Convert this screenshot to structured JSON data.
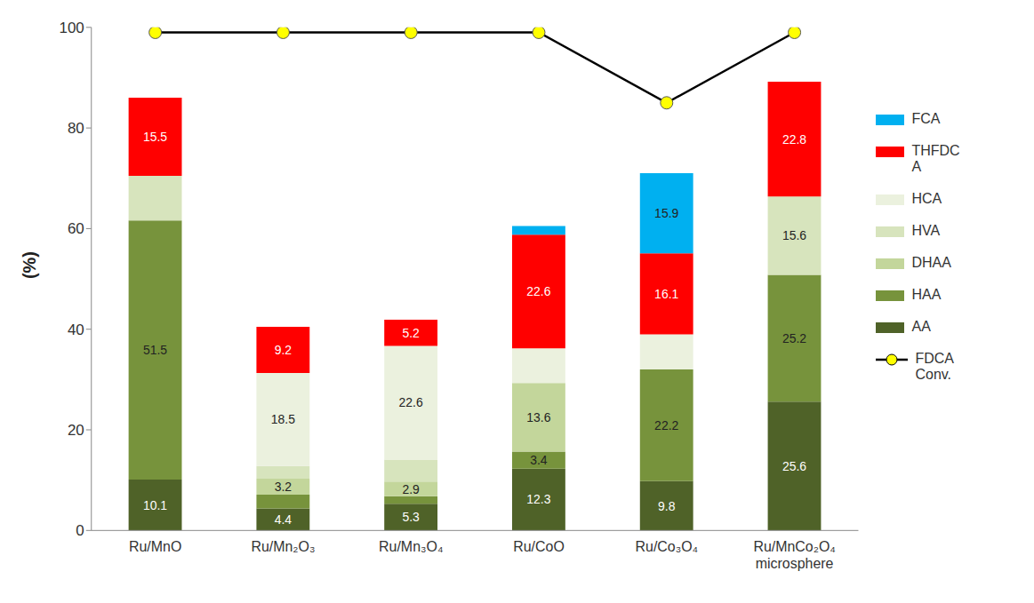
{
  "chart_data": {
    "type": "bar",
    "stacked": true,
    "categories": [
      "Ru/MnO",
      "Ru/Mn₂O₃",
      "Ru/Mn₃O₄",
      "Ru/CoO",
      "Ru/Co₃O₄",
      "Ru/MnCo₂O₄ microsphere"
    ],
    "ylabel": "(%)",
    "ylim": [
      0,
      100
    ],
    "yticks": [
      0,
      20,
      40,
      60,
      80,
      100
    ],
    "grid": false,
    "legend": "right",
    "data_labels": true,
    "series": [
      {
        "name": "AA",
        "color": "#4f6228",
        "values": [
          10.1,
          4.4,
          5.3,
          12.3,
          9.8,
          25.6
        ],
        "value_labels": [
          "10.1",
          "4.4",
          "5.3",
          "12.3",
          "9.8",
          "25.6"
        ]
      },
      {
        "name": "HAA",
        "color": "#77933c",
        "values": [
          51.5,
          2.7,
          1.5,
          3.4,
          22.2,
          25.2
        ],
        "value_labels": [
          "51.5",
          null,
          null,
          "3.4",
          "22.2",
          "25.2"
        ]
      },
      {
        "name": "DHAA",
        "color": "#c3d69b",
        "values": [
          0,
          3.2,
          2.9,
          13.6,
          0,
          0
        ],
        "value_labels": [
          null,
          "3.2",
          "2.9",
          "13.6",
          null,
          null
        ]
      },
      {
        "name": "HVA",
        "color": "#d7e4bd",
        "values": [
          8.9,
          2.5,
          4.4,
          0,
          0,
          15.6
        ],
        "value_labels": [
          null,
          null,
          null,
          null,
          null,
          "15.6"
        ]
      },
      {
        "name": "HCA",
        "color": "#ebf1de",
        "values": [
          0,
          18.5,
          22.6,
          6.9,
          7.0,
          0
        ],
        "value_labels": [
          null,
          "18.5",
          "22.6",
          null,
          null,
          null
        ]
      },
      {
        "name": "THFDCA",
        "color": "#ff0000",
        "values": [
          15.5,
          9.2,
          5.2,
          22.6,
          16.1,
          22.8
        ],
        "value_labels": [
          "15.5",
          "9.2",
          "5.2",
          "22.6",
          "16.1",
          "22.8"
        ]
      },
      {
        "name": "FCA",
        "color": "#00b0f0",
        "values": [
          0,
          0,
          0,
          1.7,
          15.9,
          0
        ],
        "value_labels": [
          null,
          null,
          null,
          null,
          "15.9",
          null
        ]
      },
      {
        "name": "FDCA Conv.",
        "type": "line",
        "color": "#000000",
        "marker": "circle",
        "values": [
          99,
          99,
          99,
          99,
          85,
          99
        ]
      }
    ]
  }
}
